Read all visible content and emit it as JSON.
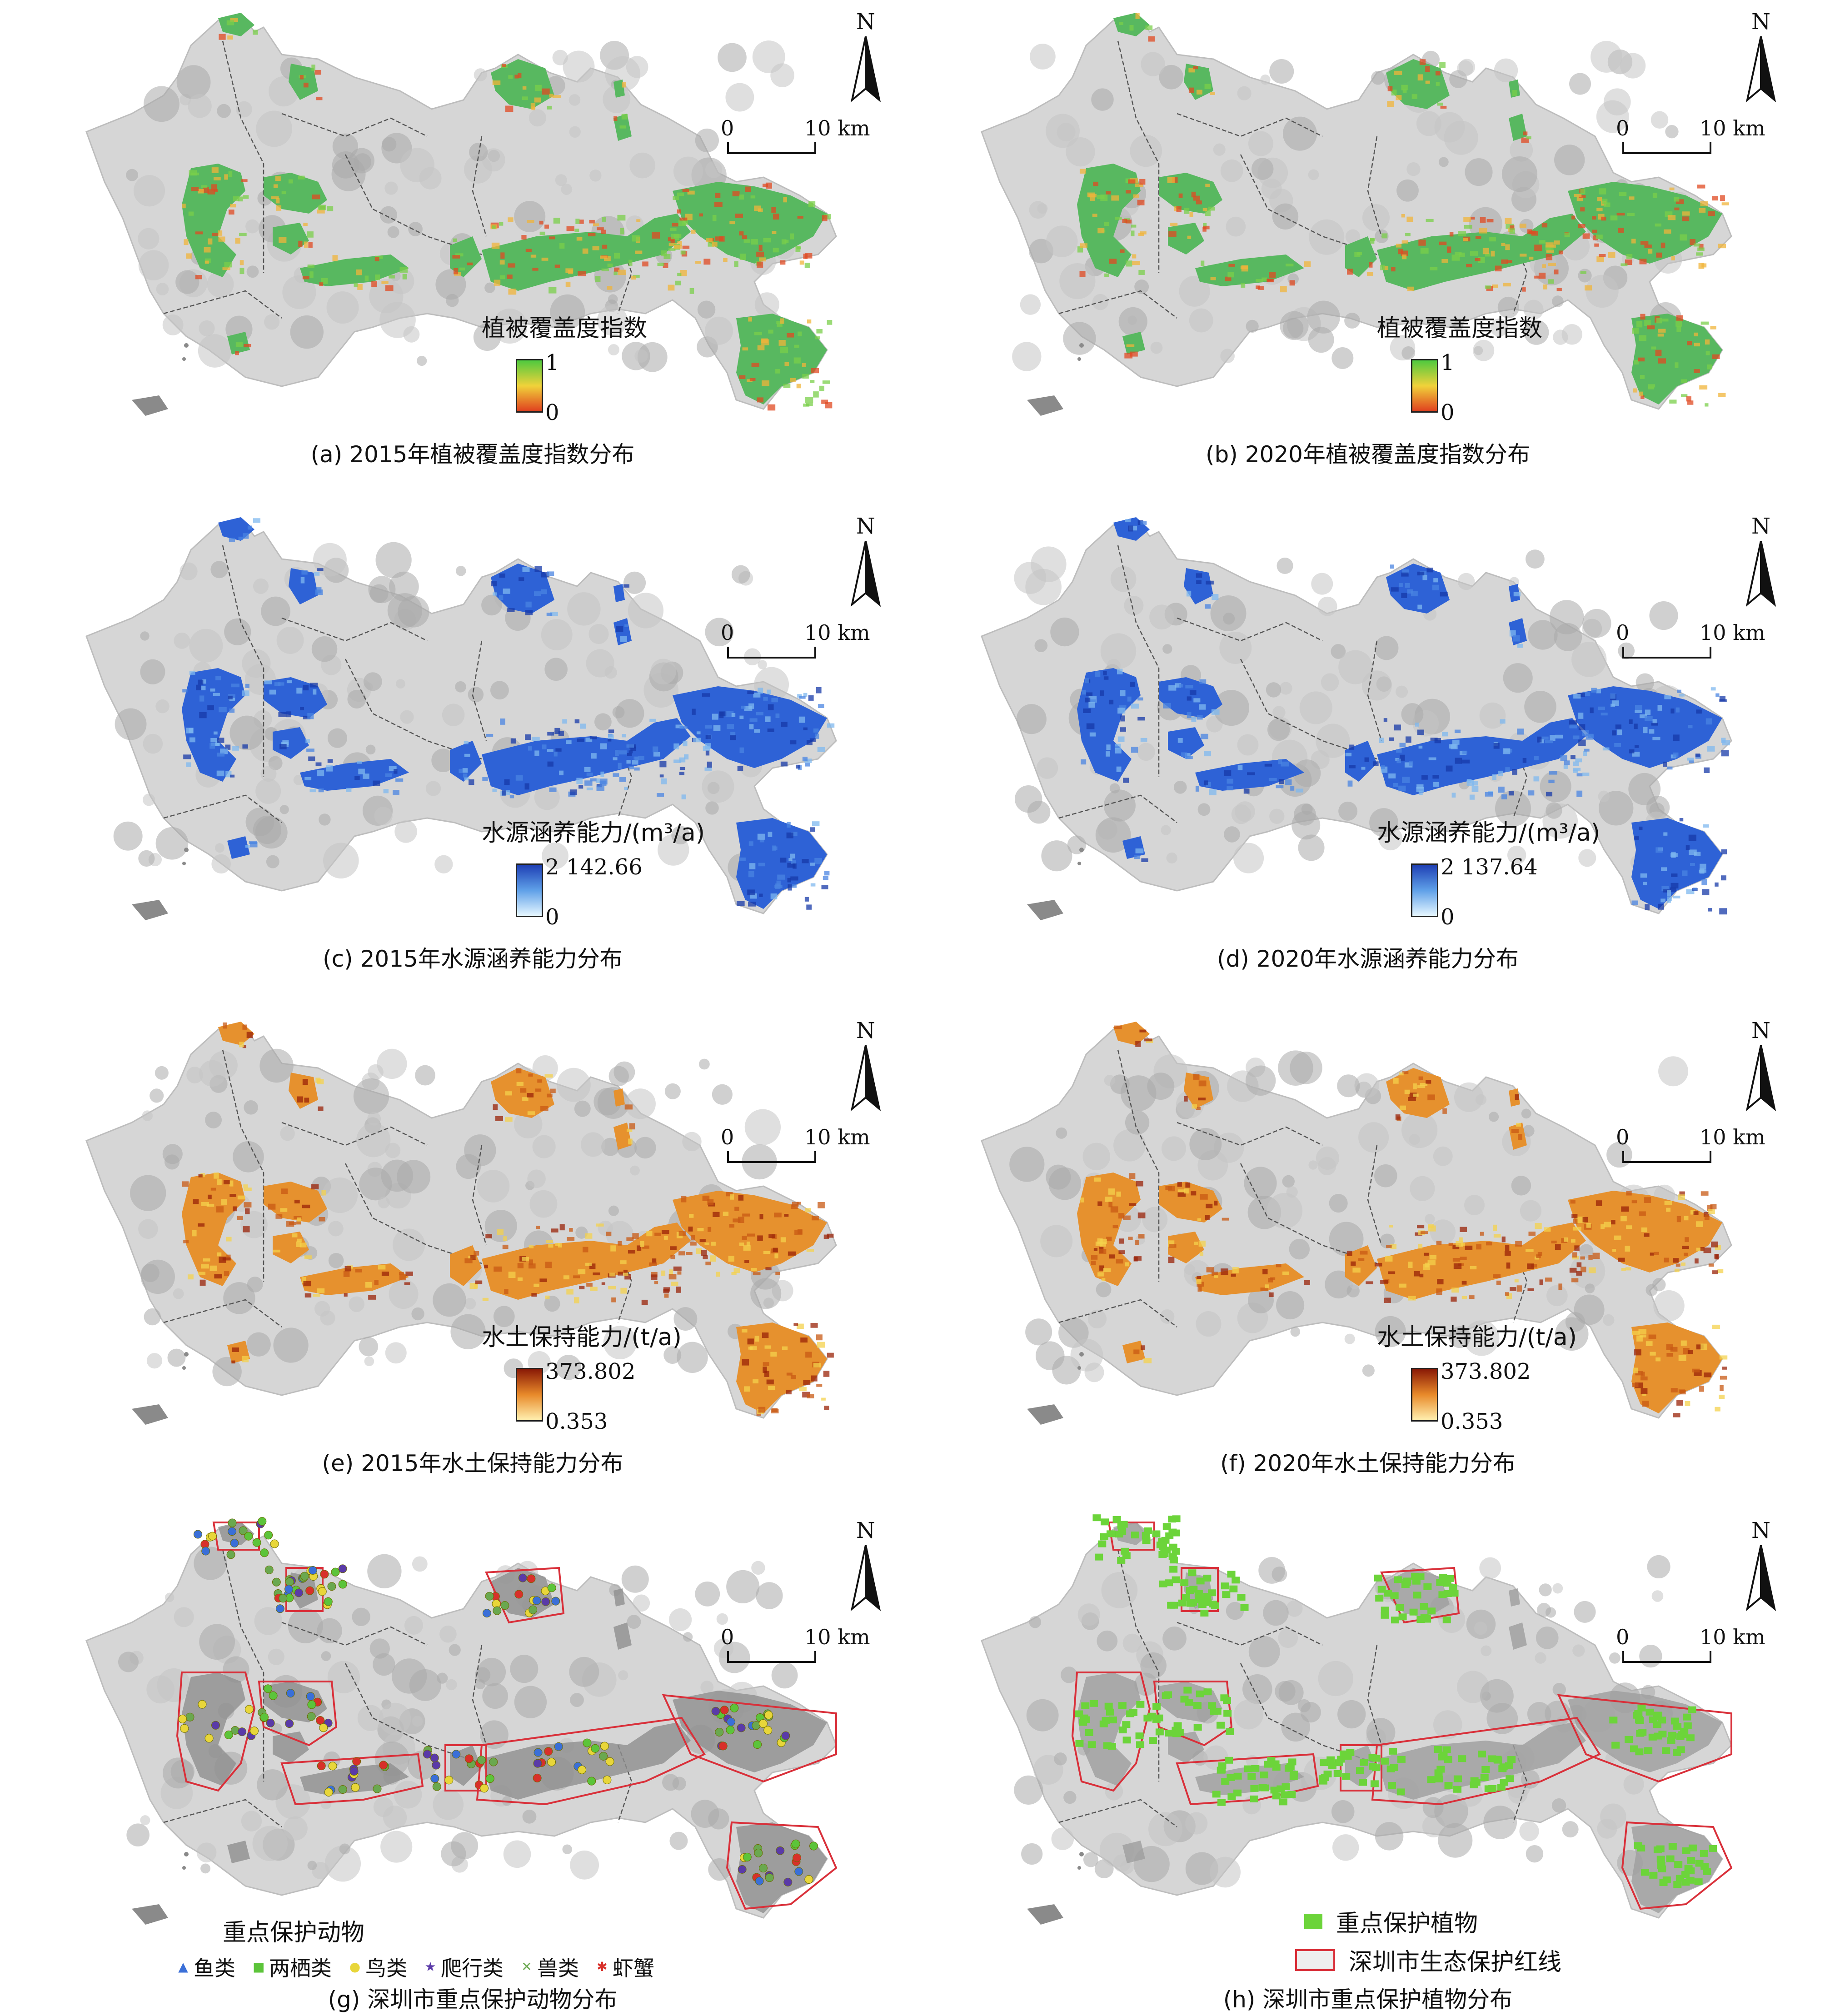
{
  "map": {
    "north_label": "N",
    "scale": {
      "start": "0",
      "end": "10 km"
    }
  },
  "panels": [
    {
      "id": "a",
      "caption": "(a) 2015年植被覆盖度指数分布",
      "legend_title": "植被覆盖度指数",
      "ramp": {
        "max": "1",
        "min": "0",
        "colors": [
          "#4fc93f",
          "#f0d23a",
          "#e0401f"
        ]
      },
      "theme": "vegetation"
    },
    {
      "id": "b",
      "caption": "(b) 2020年植被覆盖度指数分布",
      "legend_title": "植被覆盖度指数",
      "ramp": {
        "max": "1",
        "min": "0",
        "colors": [
          "#4fc93f",
          "#f0d23a",
          "#e0401f"
        ]
      },
      "theme": "vegetation"
    },
    {
      "id": "c",
      "caption": "(c) 2015年水源涵养能力分布",
      "legend_title": "水源涵养能力/(m³/a)",
      "ramp": {
        "max": "2 142.66",
        "min": "0",
        "colors": [
          "#1e3fb4",
          "#5fa0e8",
          "#e6f6ff"
        ]
      },
      "theme": "water"
    },
    {
      "id": "d",
      "caption": "(d) 2020年水源涵养能力分布",
      "legend_title": "水源涵养能力/(m³/a)",
      "ramp": {
        "max": "2 137.64",
        "min": "0",
        "colors": [
          "#1e3fb4",
          "#5fa0e8",
          "#e6f6ff"
        ]
      },
      "theme": "water"
    },
    {
      "id": "e",
      "caption": "(e) 2015年水土保持能力分布",
      "legend_title": "水土保持能力/(t/a)",
      "ramp": {
        "max": "373.802",
        "min": "0.353",
        "colors": [
          "#8a1a06",
          "#e88a2a",
          "#fff0b0"
        ]
      },
      "theme": "soil"
    },
    {
      "id": "f",
      "caption": "(f) 2020年水土保持能力分布",
      "legend_title": "水土保持能力/(t/a)",
      "ramp": {
        "max": "373.802",
        "min": "0.353",
        "colors": [
          "#8a1a06",
          "#e88a2a",
          "#fff0b0"
        ]
      },
      "theme": "soil"
    },
    {
      "id": "g",
      "caption": "(g) 深圳市重点保护动物分布",
      "legend_title": "重点保护动物",
      "theme": "animals"
    },
    {
      "id": "h",
      "caption": "(h) 深圳市重点保护植物分布",
      "theme": "plants"
    }
  ],
  "animal_legend": [
    {
      "label": "鱼类",
      "symbol": "▲",
      "color": "#3a6fd8",
      "icon": "triangle-icon"
    },
    {
      "label": "两栖类",
      "symbol": "■",
      "color": "#5cc43a",
      "icon": "square-icon"
    },
    {
      "label": "鸟类",
      "symbol": "●",
      "color": "#e8d63a",
      "icon": "circle-icon"
    },
    {
      "label": "爬行类",
      "symbol": "★",
      "color": "#5a3aa8",
      "icon": "star-icon"
    },
    {
      "label": "兽类",
      "symbol": "✕",
      "color": "#6aa84f",
      "icon": "cross-icon"
    },
    {
      "label": "虾蟹",
      "symbol": "✱",
      "color": "#d8302a",
      "icon": "asterisk-icon"
    }
  ],
  "plant_legend": {
    "plants_label": "重点保护植物",
    "plants_color": "#6cd43a",
    "redline_label": "深圳市生态保护红线",
    "redline_color": "#d9303a"
  },
  "colors": {
    "land": "#d6d6d6",
    "land_dark": "#a9a9a9",
    "boundary": "#555555"
  }
}
